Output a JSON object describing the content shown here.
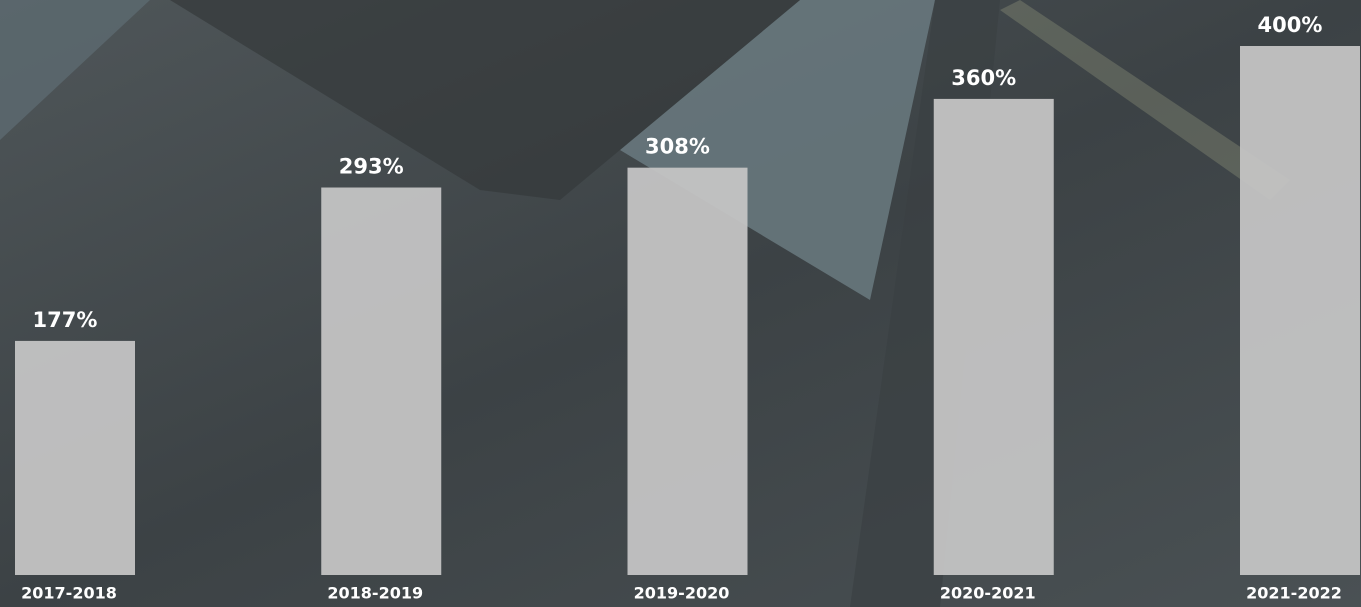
{
  "chart_data": {
    "type": "bar",
    "categories": [
      "2017-2018",
      "2018-2019",
      "2019-2020",
      "2020-2021",
      "2021-2022"
    ],
    "values": [
      177,
      293,
      308,
      360,
      400
    ],
    "value_labels": [
      "177%",
      "293%",
      "308%",
      "360%",
      "400%"
    ],
    "color": "#c4c4c4"
  }
}
